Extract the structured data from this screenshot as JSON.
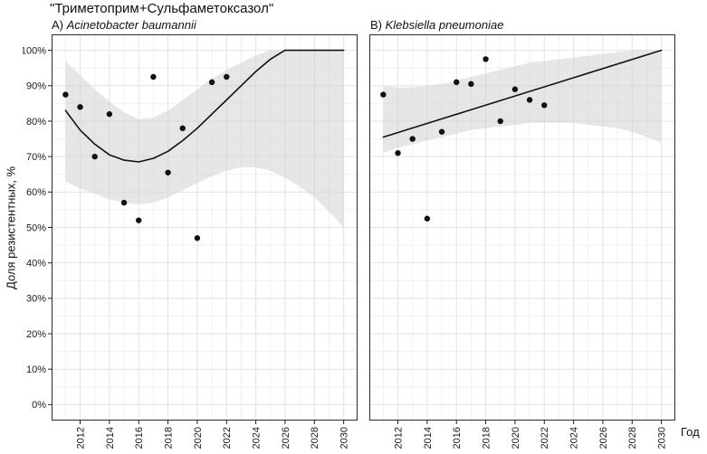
{
  "title": "\"Триметоприм+Сульфаметоксазол\"",
  "ylabel": "Доля резистентных, %",
  "xlabel": "Год",
  "chart_data": [
    {
      "type": "scatter",
      "label_prefix": "A) ",
      "species": "Acinetobacter baumannii",
      "xlim": [
        2010.05,
        2030.95
      ],
      "ylim": [
        -4.5,
        104.5
      ],
      "x_ticks": [
        2012,
        2014,
        2016,
        2018,
        2020,
        2022,
        2024,
        2026,
        2028,
        2030
      ],
      "x_tick_labels": [
        "2012",
        "2014",
        "2016",
        "2018",
        "2020",
        "2022",
        "2024",
        "2026",
        "2028",
        "2030"
      ],
      "x_minor": [
        2011,
        2013,
        2015,
        2017,
        2019,
        2021,
        2023,
        2025,
        2027,
        2029
      ],
      "y_ticks": [
        0,
        10,
        20,
        30,
        40,
        50,
        60,
        70,
        80,
        90,
        100
      ],
      "y_tick_labels": [
        "0%",
        "10%",
        "20%",
        "30%",
        "40%",
        "50%",
        "60%",
        "70%",
        "80%",
        "90%",
        "100%"
      ],
      "y_minor": [
        5,
        15,
        25,
        35,
        45,
        55,
        65,
        75,
        85,
        95
      ],
      "points": {
        "x": [
          2011,
          2012,
          2013,
          2014,
          2015,
          2016,
          2017,
          2018,
          2019,
          2020,
          2021,
          2022
        ],
        "y": [
          87.5,
          84,
          70,
          82,
          57,
          52,
          92.5,
          65.5,
          78,
          47,
          91,
          92.5
        ]
      },
      "trend": {
        "x": [
          2011,
          2012,
          2013,
          2014,
          2015,
          2016,
          2017,
          2018,
          2019,
          2020,
          2021,
          2022,
          2023,
          2024,
          2025,
          2026,
          2027,
          2028,
          2029,
          2030
        ],
        "y": [
          83,
          77.5,
          73.5,
          70.5,
          69,
          68.5,
          69.5,
          71.5,
          74.5,
          78,
          82,
          86,
          90,
          94,
          97.5,
          100,
          100,
          100,
          100,
          100
        ]
      },
      "band": {
        "x": [
          2011,
          2012,
          2013,
          2014,
          2015,
          2016,
          2017,
          2018,
          2019,
          2020,
          2021,
          2022,
          2023,
          2024,
          2025,
          2026,
          2027,
          2028,
          2029,
          2030
        ],
        "upper": [
          97,
          93,
          89,
          85.5,
          82.5,
          80.5,
          81,
          83,
          86,
          89,
          92,
          94.5,
          96.5,
          98.5,
          100,
          100,
          100,
          100,
          100,
          100
        ],
        "lower": [
          63,
          61,
          59.5,
          58,
          57,
          56.5,
          57,
          58.5,
          60.5,
          62.5,
          64.5,
          66,
          67,
          67,
          66,
          64,
          61.5,
          58.5,
          54.5,
          50
        ]
      },
      "colors": {
        "point": "#111111",
        "line": "#111111",
        "band": "#d6d6d6",
        "grid_major": "#e2e2e2",
        "grid_minor": "#f0f0f0",
        "border": "#2b2b2b"
      }
    },
    {
      "type": "scatter",
      "label_prefix": "B) ",
      "species": "Klebsiella pneumoniae",
      "xlim": [
        2010.05,
        2030.95
      ],
      "ylim": [
        -4.5,
        104.5
      ],
      "x_ticks": [
        2012,
        2014,
        2016,
        2018,
        2020,
        2022,
        2024,
        2026,
        2028,
        2030
      ],
      "x_tick_labels": [
        "2012",
        "2014",
        "2016",
        "2018",
        "2020",
        "2022",
        "2024",
        "2026",
        "2028",
        "2030"
      ],
      "x_minor": [
        2011,
        2013,
        2015,
        2017,
        2019,
        2021,
        2023,
        2025,
        2027,
        2029
      ],
      "y_ticks": [
        0,
        10,
        20,
        30,
        40,
        50,
        60,
        70,
        80,
        90,
        100
      ],
      "y_tick_labels": [
        "0%",
        "10%",
        "20%",
        "30%",
        "40%",
        "50%",
        "60%",
        "70%",
        "80%",
        "90%",
        "100%"
      ],
      "y_minor": [
        5,
        15,
        25,
        35,
        45,
        55,
        65,
        75,
        85,
        95
      ],
      "points": {
        "x": [
          2011,
          2012,
          2013,
          2014,
          2015,
          2016,
          2017,
          2018,
          2019,
          2020,
          2021,
          2022
        ],
        "y": [
          87.5,
          71,
          75,
          52.5,
          77,
          91,
          90.5,
          97.5,
          80,
          89,
          86,
          84.5
        ]
      },
      "trend": {
        "x": [
          2011,
          2030
        ],
        "y": [
          75.5,
          100
        ]
      },
      "band": {
        "x": [
          2011,
          2012,
          2013,
          2014,
          2015,
          2016,
          2017,
          2018,
          2019,
          2020,
          2021,
          2022,
          2023,
          2024,
          2025,
          2026,
          2027,
          2028,
          2029,
          2030
        ],
        "upper": [
          90,
          89.5,
          89.5,
          90,
          90.5,
          91.5,
          92.5,
          93.5,
          94.5,
          95.5,
          96.5,
          97,
          97.5,
          98,
          98.5,
          99,
          99.5,
          100,
          100,
          100
        ],
        "lower": [
          71,
          72.5,
          73.5,
          74.5,
          75.5,
          76.5,
          77.5,
          78,
          78.5,
          79,
          79.5,
          79.5,
          79.5,
          79.5,
          79,
          78.5,
          78,
          77,
          75.5,
          74
        ]
      },
      "colors": {
        "point": "#111111",
        "line": "#111111",
        "band": "#d6d6d6",
        "grid_major": "#e2e2e2",
        "grid_minor": "#f0f0f0",
        "border": "#2b2b2b"
      }
    }
  ]
}
